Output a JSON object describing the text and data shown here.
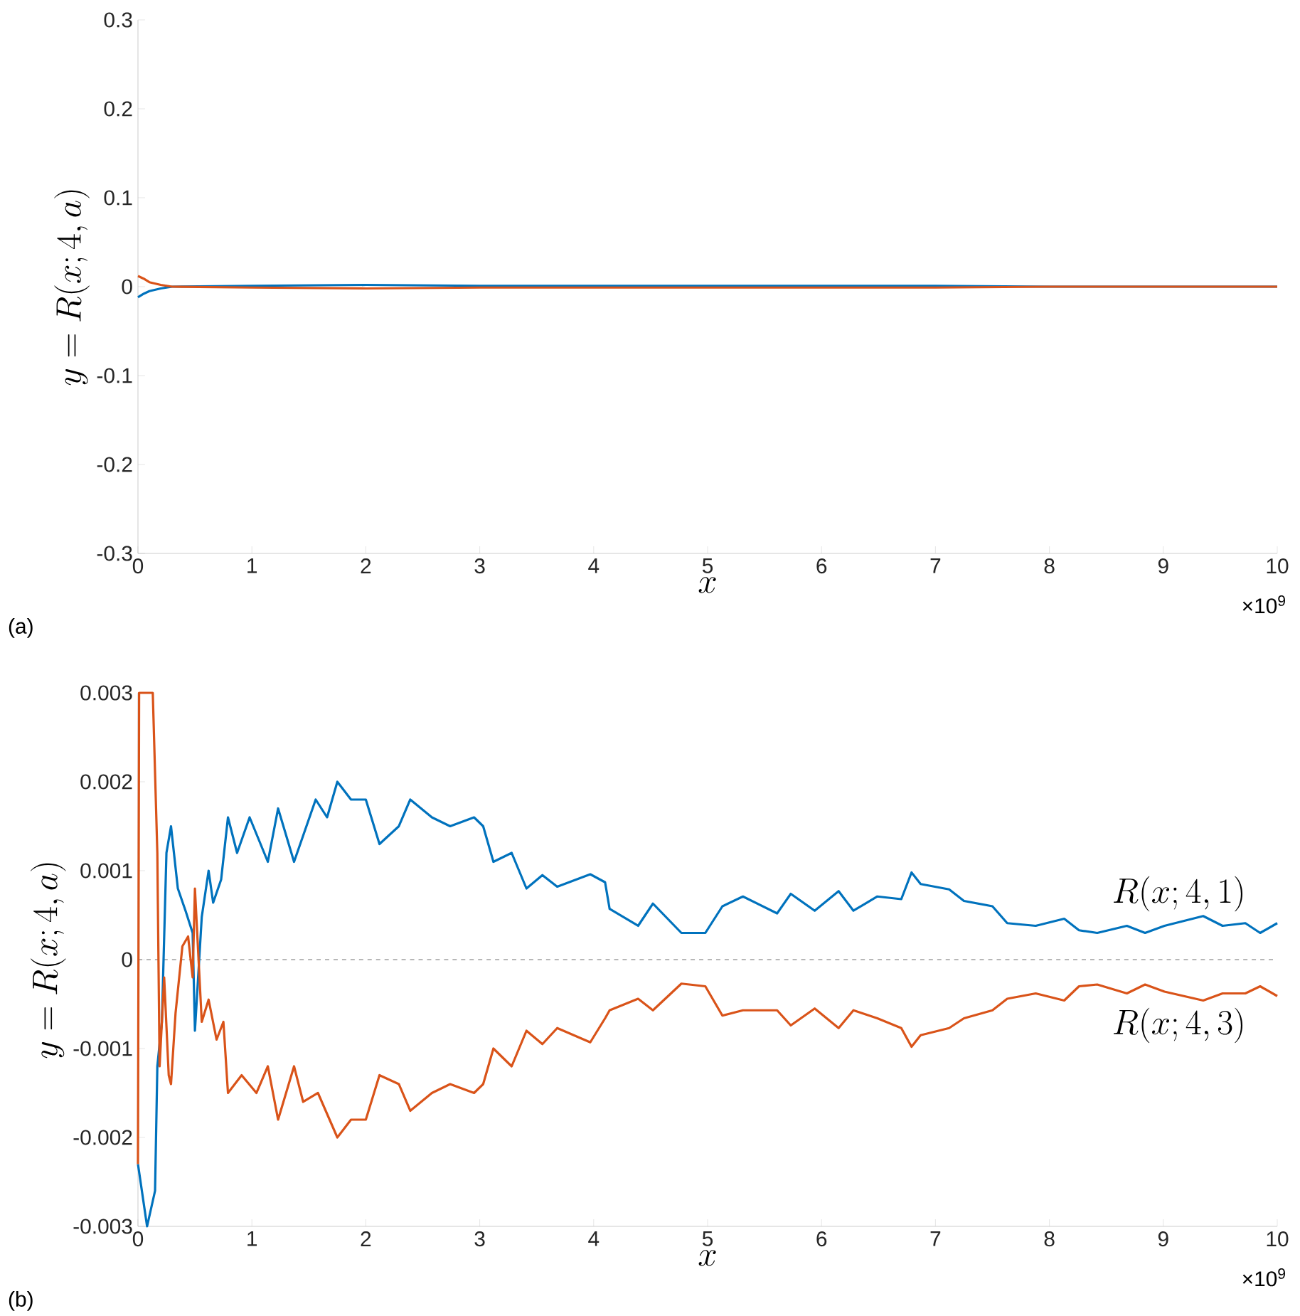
{
  "chart_data": [
    {
      "type": "line",
      "xlabel": "x",
      "ylabel": "y = R(x;4,a)",
      "xlim": [
        0,
        10
      ],
      "ylim": [
        -0.3,
        0.3
      ],
      "xticks": [
        0,
        1,
        2,
        3,
        4,
        5,
        6,
        7,
        8,
        9,
        10
      ],
      "yticks": [
        -0.3,
        -0.2,
        -0.1,
        0,
        0.1,
        0.2,
        0.3
      ],
      "annotations": [
        "(a)",
        "×10$^{9}$"
      ],
      "grid": false,
      "line_style": "solid",
      "series": [
        {
          "color": "#0072bd",
          "x": [
            0,
            0.05,
            0.1,
            0.2,
            0.3,
            1,
            2,
            3,
            4,
            5,
            6,
            7,
            8,
            9,
            10
          ],
          "values": [
            -0.012,
            -0.008,
            -0.005,
            -0.002,
            0,
            0.001,
            0.002,
            0.001,
            0.001,
            0.001,
            0.001,
            0.001,
            0,
            0,
            0
          ]
        },
        {
          "color": "#d95319",
          "x": [
            0,
            0.05,
            0.1,
            0.2,
            0.3,
            1,
            2,
            3,
            4,
            5,
            6,
            7,
            8,
            9,
            10
          ],
          "values": [
            0.012,
            0.009,
            0.005,
            0.002,
            0,
            -0.001,
            -0.002,
            -0.001,
            -0.001,
            -0.001,
            -0.001,
            -0.001,
            0,
            0,
            0
          ]
        }
      ]
    },
    {
      "type": "line",
      "xlabel": "x",
      "ylabel": "y = R(x;4,a)",
      "xlim": [
        0,
        10
      ],
      "ylim": [
        -0.003,
        0.003
      ],
      "xticks": [
        0,
        1,
        2,
        3,
        4,
        5,
        6,
        7,
        8,
        9,
        10
      ],
      "yticks": [
        -0.003,
        -0.002,
        -0.001,
        0,
        0.001,
        0.002,
        0.003
      ],
      "annotations": [
        "(b)",
        "×10$^{9}$"
      ],
      "grid": false,
      "line_style": "solid",
      "ref_lines": [
        {
          "axis": "y",
          "value": 0,
          "color": "#a0a0a0",
          "line_style": "dashed"
        }
      ],
      "series": [
        {
          "name": "R(x;4,1)",
          "color": "#0072bd",
          "x": [
            0,
            0.08,
            0.15,
            0.17,
            0.21,
            0.25,
            0.29,
            0.35,
            0.42,
            0.48,
            0.5,
            0.56,
            0.62,
            0.66,
            0.73,
            0.79,
            0.87,
            0.98,
            1.14,
            1.23,
            1.37,
            1.56,
            1.66,
            1.75,
            1.87,
            2.0,
            2.12,
            2.29,
            2.39,
            2.58,
            2.74,
            2.95,
            3.03,
            3.12,
            3.28,
            3.41,
            3.55,
            3.68,
            3.97,
            4.1,
            4.14,
            4.39,
            4.52,
            4.77,
            4.98,
            5.13,
            5.31,
            5.61,
            5.73,
            5.94,
            6.15,
            6.28,
            6.49,
            6.7,
            6.79,
            6.87,
            7.12,
            7.25,
            7.5,
            7.63,
            7.88,
            8.13,
            8.26,
            8.42,
            8.68,
            8.84,
            9.01,
            9.35,
            9.52,
            9.72,
            9.85,
            10
          ],
          "values": [
            -0.0023,
            -0.003,
            -0.0026,
            -0.0012,
            -0.0007,
            0.0012,
            0.0015,
            0.0008,
            0.00054,
            0.0003,
            -0.0008,
            0.00048,
            0.001,
            0.00064,
            0.0009,
            0.0016,
            0.0012,
            0.0016,
            0.0011,
            0.0017,
            0.0011,
            0.0018,
            0.0016,
            0.002,
            0.0018,
            0.0018,
            0.0013,
            0.0015,
            0.0018,
            0.0016,
            0.0015,
            0.0016,
            0.0015,
            0.0011,
            0.0012,
            0.0008,
            0.00095,
            0.00082,
            0.00096,
            0.00087,
            0.00057,
            0.00038,
            0.00063,
            0.0003,
            0.0003,
            0.0006,
            0.00071,
            0.00052,
            0.00074,
            0.00055,
            0.00077,
            0.00055,
            0.00071,
            0.00068,
            0.00098,
            0.00085,
            0.00079,
            0.00066,
            0.0006,
            0.00041,
            0.00038,
            0.00046,
            0.00033,
            0.0003,
            0.00038,
            0.0003,
            0.00038,
            0.00049,
            0.00038,
            0.00041,
            0.0003,
            0.00041
          ]
        },
        {
          "name": "R(x;4,3)",
          "color": "#d95319",
          "x": [
            0,
            0.01,
            0.13,
            0.17,
            0.19,
            0.23,
            0.27,
            0.29,
            0.33,
            0.39,
            0.44,
            0.48,
            0.5,
            0.56,
            0.62,
            0.69,
            0.75,
            0.79,
            0.91,
            1.04,
            1.14,
            1.23,
            1.37,
            1.45,
            1.58,
            1.75,
            1.87,
            2.0,
            2.12,
            2.29,
            2.39,
            2.58,
            2.74,
            2.95,
            3.03,
            3.12,
            3.28,
            3.41,
            3.55,
            3.68,
            3.97,
            4.1,
            4.14,
            4.39,
            4.52,
            4.77,
            4.98,
            5.13,
            5.31,
            5.61,
            5.73,
            5.94,
            6.15,
            6.28,
            6.49,
            6.7,
            6.79,
            6.87,
            7.12,
            7.25,
            7.5,
            7.63,
            7.88,
            8.13,
            8.26,
            8.42,
            8.68,
            8.84,
            9.01,
            9.35,
            9.52,
            9.72,
            9.85,
            10
          ],
          "values": [
            -0.0023,
            0.003,
            0.003,
            0.0012,
            -0.0012,
            -0.0002,
            -0.0013,
            -0.0014,
            -0.0006,
            0.00015,
            0.00026,
            -0.0002,
            0.0008,
            -0.0007,
            -0.00045,
            -0.0009,
            -0.0007,
            -0.0015,
            -0.0013,
            -0.0015,
            -0.0012,
            -0.0018,
            -0.0012,
            -0.0016,
            -0.0015,
            -0.002,
            -0.0018,
            -0.0018,
            -0.0013,
            -0.0014,
            -0.0017,
            -0.0015,
            -0.0014,
            -0.0015,
            -0.0014,
            -0.001,
            -0.0012,
            -0.0008,
            -0.00095,
            -0.00077,
            -0.00093,
            -0.00066,
            -0.00057,
            -0.00044,
            -0.00057,
            -0.00027,
            -0.0003,
            -0.00063,
            -0.00057,
            -0.00057,
            -0.00074,
            -0.00055,
            -0.00077,
            -0.00057,
            -0.00066,
            -0.00077,
            -0.00098,
            -0.00085,
            -0.00077,
            -0.00066,
            -0.00057,
            -0.00044,
            -0.00038,
            -0.00046,
            -0.0003,
            -0.00028,
            -0.00038,
            -0.00028,
            -0.00036,
            -0.00046,
            -0.00038,
            -0.00038,
            -0.0003,
            -0.00041
          ]
        }
      ]
    }
  ]
}
